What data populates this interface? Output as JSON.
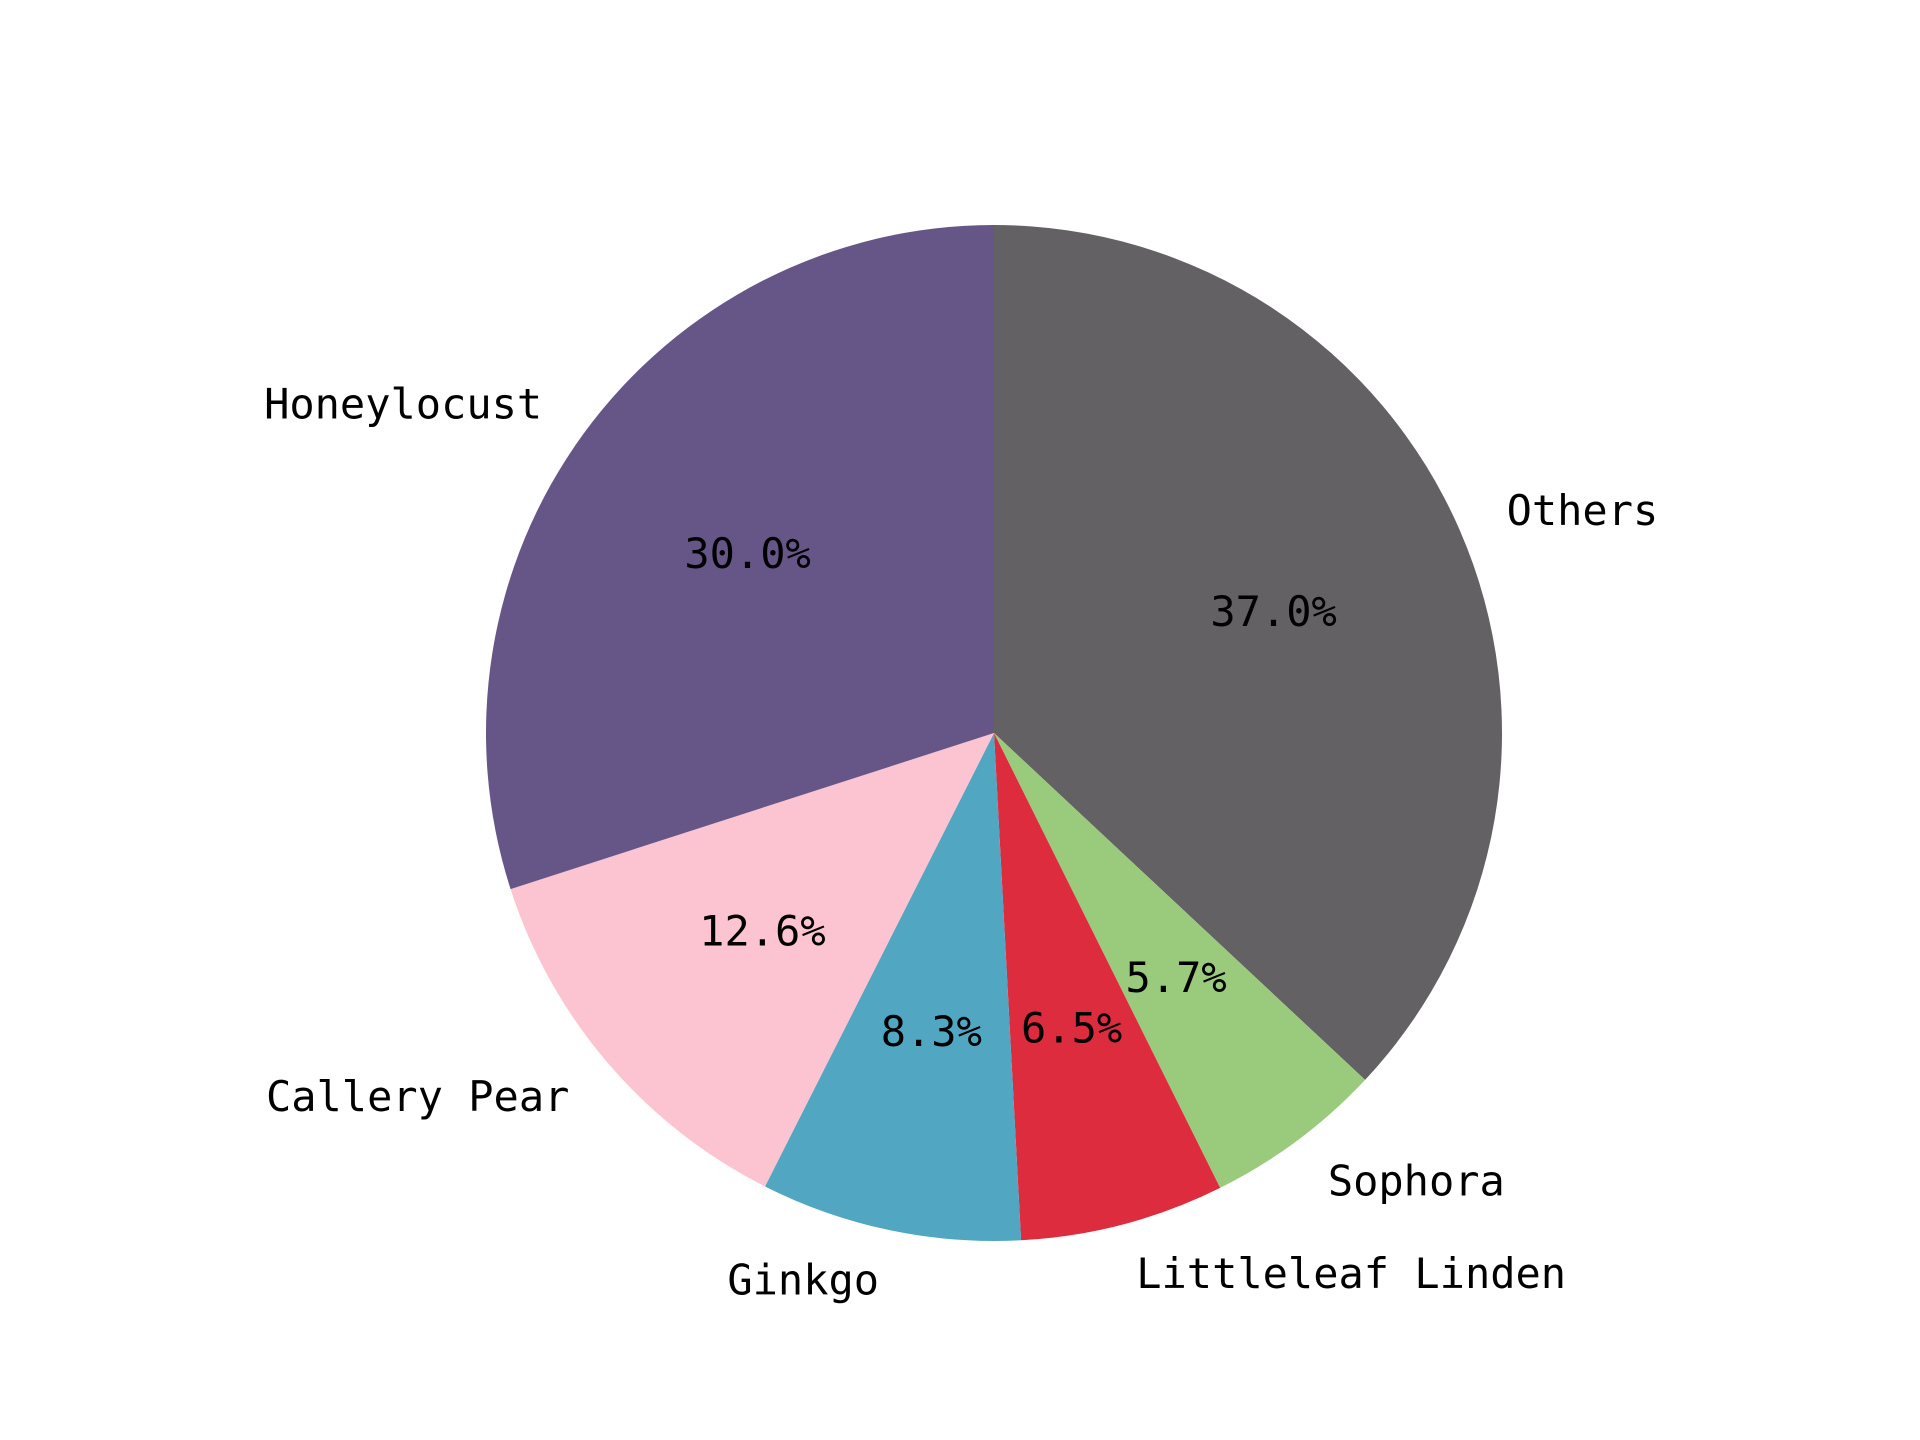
{
  "chart_data": {
    "type": "pie",
    "title": "",
    "start_angle_deg": 90,
    "direction": "clockwise",
    "slices": [
      {
        "label": "Others",
        "value": 37.0,
        "pct_label": "37.0%",
        "color": "#636164"
      },
      {
        "label": "Sophora",
        "value": 5.7,
        "pct_label": "5.7%",
        "color": "#9ACA7C"
      },
      {
        "label": "Littleleaf Linden",
        "value": 6.5,
        "pct_label": "6.5%",
        "color": "#DC2C3E"
      },
      {
        "label": "Ginkgo",
        "value": 8.3,
        "pct_label": "8.3%",
        "color": "#51A6C2"
      },
      {
        "label": "Callery Pear",
        "value": 12.6,
        "pct_label": "12.6%",
        "color": "#FCC3D1"
      },
      {
        "label": "Honeylocust",
        "value": 30.0,
        "pct_label": "30.0%",
        "color": "#665687"
      }
    ]
  }
}
